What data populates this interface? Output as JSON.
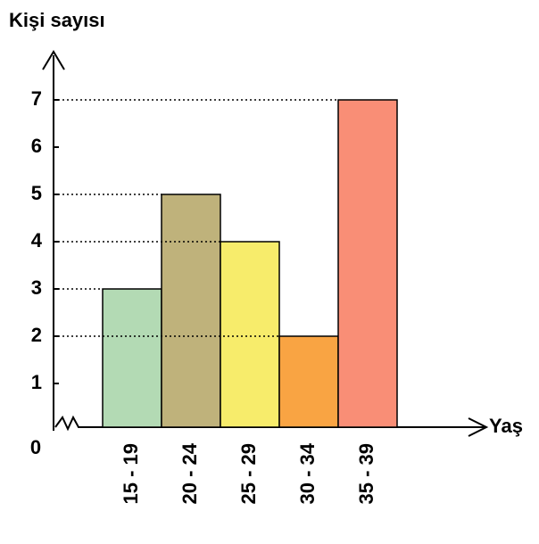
{
  "chart_data": {
    "type": "bar",
    "title": "Kişi sayısı",
    "x_label": "Yaş",
    "categories": [
      "15 - 19",
      "20 - 24",
      "25 - 29",
      "30 - 34",
      "35 - 39"
    ],
    "values": [
      3,
      5,
      4,
      2,
      7
    ],
    "colors": [
      "#b3dab4",
      "#bfb27b",
      "#f7ec6b",
      "#f9a443",
      "#f98e76"
    ],
    "ylim": [
      0,
      8
    ],
    "yticks": [
      0,
      1,
      2,
      3,
      4,
      5,
      6,
      7
    ],
    "grid": false
  }
}
